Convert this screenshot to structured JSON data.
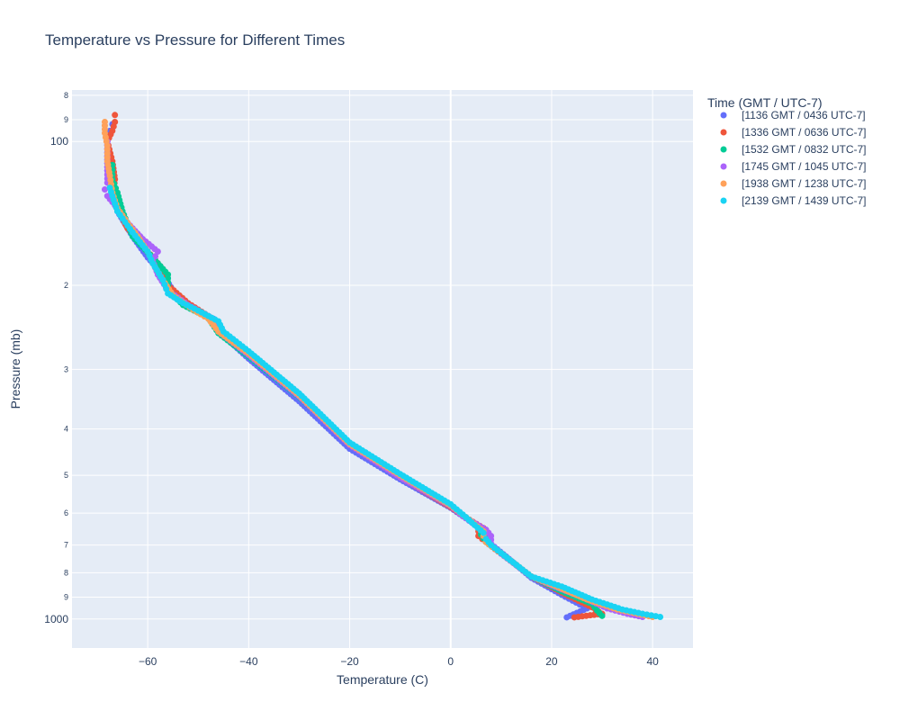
{
  "chart_data": {
    "type": "scatter",
    "title": "Temperature vs Pressure for Different Times",
    "xlabel": "Temperature (C)",
    "ylabel": "Pressure (mb)",
    "xlim": [
      -75,
      48
    ],
    "ylim": [
      1150,
      78
    ],
    "y_scale": "log",
    "y_reversed": true,
    "x_ticks": [
      -60,
      -40,
      -20,
      0,
      20,
      40
    ],
    "x_tick_labels": [
      "−60",
      "−40",
      "−20",
      "0",
      "20",
      "40"
    ],
    "y_major_ticks": [
      100,
      1000
    ],
    "y_major_tick_labels": [
      "100",
      "1000"
    ],
    "y_minor_ticks": [
      80,
      90,
      200,
      300,
      400,
      500,
      600,
      700,
      800,
      900
    ],
    "y_minor_tick_labels": [
      "8",
      "9",
      "2",
      "3",
      "4",
      "5",
      "6",
      "7",
      "8",
      "9"
    ],
    "grid": true,
    "legend": {
      "title": "Time (GMT / UTC-7)",
      "position": "right"
    },
    "series": [
      {
        "name": "[1136 GMT / 0436 UTC-7]",
        "color": "#636efa",
        "points": [
          [
            23,
            992
          ],
          [
            27,
            950
          ],
          [
            22,
            890
          ],
          [
            16,
            820
          ],
          [
            11,
            740
          ],
          [
            7.5,
            690
          ],
          [
            7,
            660
          ],
          [
            3,
            615
          ],
          [
            0,
            585
          ],
          [
            -10,
            510
          ],
          [
            -20,
            440
          ],
          [
            -30,
            350
          ],
          [
            -40,
            285
          ],
          [
            -45,
            255
          ],
          [
            -47,
            235
          ],
          [
            -52,
            222
          ],
          [
            -55,
            205
          ],
          [
            -57,
            190
          ],
          [
            -60,
            175
          ],
          [
            -63,
            158
          ],
          [
            -66,
            140
          ],
          [
            -67,
            128
          ],
          [
            -68,
            115
          ],
          [
            -68,
            100
          ],
          [
            -67.5,
            95
          ],
          [
            -67,
            92
          ]
        ]
      },
      {
        "name": "[1336 GMT / 0636 UTC-7]",
        "color": "#ef553b",
        "points": [
          [
            24.5,
            992
          ],
          [
            30,
            975
          ],
          [
            28,
            945
          ],
          [
            22,
            880
          ],
          [
            16,
            815
          ],
          [
            10,
            730
          ],
          [
            7,
            690
          ],
          [
            5.5,
            670
          ],
          [
            5.5,
            655
          ],
          [
            6.5,
            645
          ],
          [
            3,
            613
          ],
          [
            0,
            583
          ],
          [
            -10,
            505
          ],
          [
            -20,
            432
          ],
          [
            -30,
            340
          ],
          [
            -40,
            278
          ],
          [
            -46,
            250
          ],
          [
            -48,
            232
          ],
          [
            -52,
            218
          ],
          [
            -56,
            200
          ],
          [
            -57,
            185
          ],
          [
            -60,
            170
          ],
          [
            -64,
            152
          ],
          [
            -67,
            132
          ],
          [
            -66.5,
            120
          ],
          [
            -67,
            110
          ],
          [
            -68,
            100
          ],
          [
            -67,
            95
          ],
          [
            -66.5,
            91
          ],
          [
            -66.5,
            88
          ]
        ]
      },
      {
        "name": "[1532 GMT / 0832 UTC-7]",
        "color": "#00cc96",
        "points": [
          [
            30,
            985
          ],
          [
            29,
            960
          ],
          [
            28,
            930
          ],
          [
            22,
            875
          ],
          [
            16,
            815
          ],
          [
            10,
            728
          ],
          [
            7,
            690
          ],
          [
            6,
            665
          ],
          [
            6,
            650
          ],
          [
            3,
            612
          ],
          [
            0,
            578
          ],
          [
            -10,
            500
          ],
          [
            -20,
            430
          ],
          [
            -30,
            343
          ],
          [
            -40,
            282
          ],
          [
            -46,
            252
          ],
          [
            -48,
            234
          ],
          [
            -53,
            220
          ],
          [
            -56,
            204
          ],
          [
            -56,
            190
          ],
          [
            -59,
            175
          ],
          [
            -63,
            158
          ],
          [
            -65,
            140
          ],
          [
            -66,
            128
          ],
          [
            -67,
            120
          ],
          [
            -67,
            112
          ]
        ]
      },
      {
        "name": "[1745 GMT / 1045 UTC-7]",
        "color": "#ab63fa",
        "points": [
          [
            38,
            990
          ],
          [
            35,
            975
          ],
          [
            31,
            950
          ],
          [
            26,
            900
          ],
          [
            20,
            850
          ],
          [
            16,
            815
          ],
          [
            10,
            730
          ],
          [
            8,
            695
          ],
          [
            8,
            670
          ],
          [
            7,
            650
          ],
          [
            3,
            615
          ],
          [
            0,
            580
          ],
          [
            -10,
            505
          ],
          [
            -20,
            432
          ],
          [
            -30,
            342
          ],
          [
            -40,
            280
          ],
          [
            -46,
            250
          ],
          [
            -48,
            232
          ],
          [
            -52,
            220
          ],
          [
            -56,
            205
          ],
          [
            -58,
            190
          ],
          [
            -59,
            178
          ],
          [
            -58,
            170
          ],
          [
            -61,
            160
          ],
          [
            -64,
            148
          ],
          [
            -66,
            138
          ],
          [
            -68,
            130
          ],
          [
            -68.5,
            126
          ],
          [
            -68,
            122
          ],
          [
            -68,
            115
          ],
          [
            -68,
            100
          ]
        ]
      },
      {
        "name": "[1938 GMT / 1238 UTC-7]",
        "color": "#ffa15a",
        "points": [
          [
            40,
            990
          ],
          [
            37,
            975
          ],
          [
            33,
            955
          ],
          [
            27,
            910
          ],
          [
            21,
            855
          ],
          [
            16,
            815
          ],
          [
            10,
            728
          ],
          [
            7,
            690
          ],
          [
            6.5,
            670
          ],
          [
            6.5,
            655
          ],
          [
            3,
            612
          ],
          [
            0,
            578
          ],
          [
            -10,
            500
          ],
          [
            -20,
            430
          ],
          [
            -30,
            340
          ],
          [
            -40,
            278
          ],
          [
            -46,
            250
          ],
          [
            -48,
            235
          ],
          [
            -51,
            225
          ],
          [
            -55,
            210
          ],
          [
            -57,
            195
          ],
          [
            -59,
            180
          ],
          [
            -60,
            170
          ],
          [
            -62,
            158
          ],
          [
            -64,
            148
          ],
          [
            -66,
            138
          ],
          [
            -67,
            128
          ],
          [
            -67.5,
            118
          ],
          [
            -68,
            110
          ],
          [
            -68,
            102
          ],
          [
            -68.5,
            96
          ],
          [
            -68.5,
            91
          ]
        ]
      },
      {
        "name": "[2139 GMT / 1439 UTC-7]",
        "color": "#19d3f3",
        "points": [
          [
            41.5,
            990
          ],
          [
            38,
            975
          ],
          [
            34,
            955
          ],
          [
            28,
            910
          ],
          [
            22,
            855
          ],
          [
            16,
            815
          ],
          [
            10,
            728
          ],
          [
            8,
            700
          ],
          [
            7,
            680
          ],
          [
            6.5,
            660
          ],
          [
            3,
            612
          ],
          [
            0,
            575
          ],
          [
            -10,
            497
          ],
          [
            -20,
            427
          ],
          [
            -30,
            337
          ],
          [
            -40,
            275
          ],
          [
            -45,
            250
          ],
          [
            -46,
            238
          ],
          [
            -50,
            226
          ],
          [
            -53,
            218
          ],
          [
            -56,
            208
          ],
          [
            -57,
            195
          ],
          [
            -59,
            180
          ],
          [
            -60,
            170
          ],
          [
            -62,
            160
          ],
          [
            -64,
            150
          ],
          [
            -66,
            140
          ],
          [
            -67,
            130
          ],
          [
            -67.5,
            125
          ]
        ]
      }
    ]
  }
}
